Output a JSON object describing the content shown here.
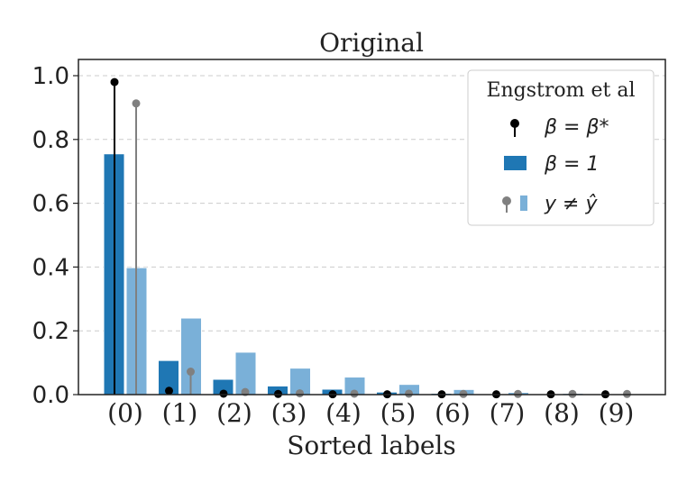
{
  "chart_data": {
    "type": "bar",
    "title": "Original",
    "xlabel": "Sorted labels",
    "ylabel": "",
    "ylim": [
      0,
      1.0
    ],
    "yticks": [
      "0.0",
      "0.2",
      "0.4",
      "0.6",
      "0.8",
      "1.0"
    ],
    "grid": true,
    "categories": [
      "(0)",
      "(1)",
      "(2)",
      "(3)",
      "(4)",
      "(5)",
      "(6)",
      "(7)",
      "(8)",
      "(9)"
    ],
    "legend": {
      "title": "Engstrom et al",
      "placement": "top-right",
      "entries": [
        "β = β*",
        "β = 1",
        "y ≠ ŷ"
      ]
    },
    "bar_series": [
      {
        "name": "β = 1",
        "color": "#1f77b4",
        "values": [
          0.755,
          0.107,
          0.048,
          0.027,
          0.017,
          0.008,
          0.004,
          0.002,
          0.001,
          0.001
        ]
      },
      {
        "name": "β = 1 (y ≠ ŷ)",
        "color": "#7ab0d8",
        "values": [
          0.398,
          0.24,
          0.133,
          0.083,
          0.055,
          0.032,
          0.016,
          0.007,
          0.004,
          0.002
        ]
      }
    ],
    "stem_series": [
      {
        "name": "β = β*",
        "color": "#000000",
        "values": [
          0.98,
          0.012,
          0.003,
          0.002,
          0.001,
          0.001,
          0.001,
          0.001,
          0.001,
          0.001
        ]
      },
      {
        "name": "β = β* (y ≠ ŷ)",
        "color": "#808080",
        "values": [
          0.913,
          0.072,
          0.008,
          0.004,
          0.003,
          0.003,
          0.002,
          0.002,
          0.002,
          0.002
        ]
      }
    ]
  }
}
